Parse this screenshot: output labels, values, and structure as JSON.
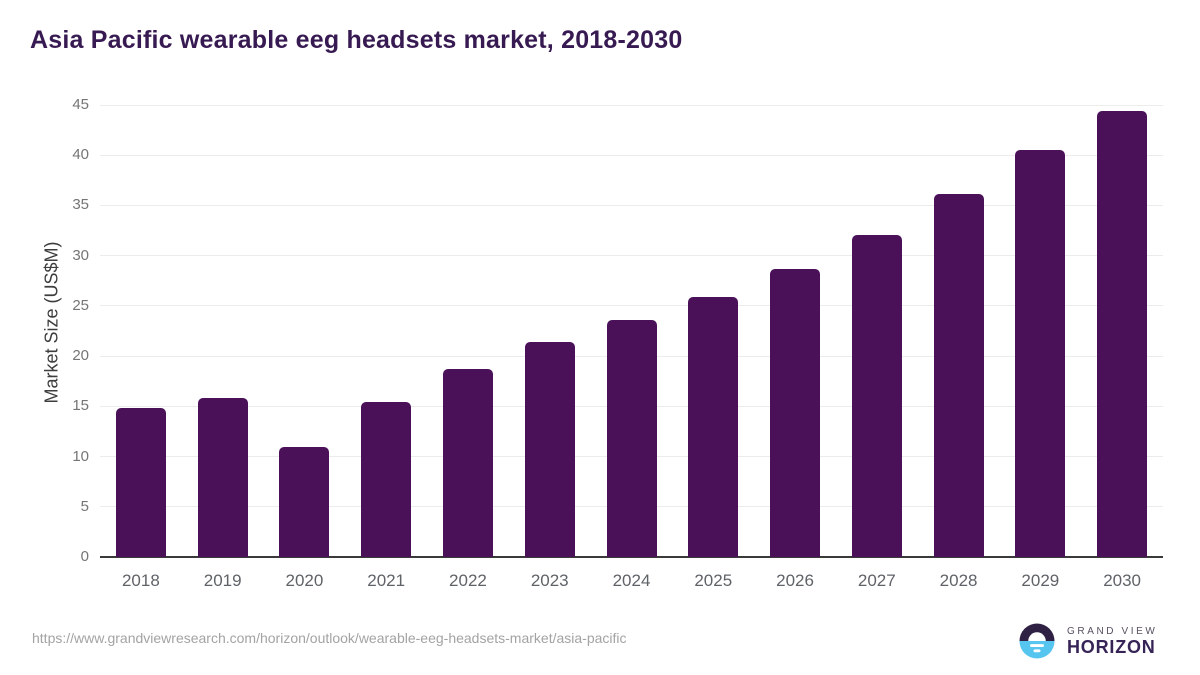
{
  "title": "Asia Pacific wearable eeg headsets market, 2018-2030",
  "chart_data": {
    "type": "bar",
    "title": "Asia Pacific wearable eeg headsets market, 2018-2030",
    "categories": [
      "2018",
      "2019",
      "2020",
      "2021",
      "2022",
      "2023",
      "2024",
      "2025",
      "2026",
      "2027",
      "2028",
      "2029",
      "2030"
    ],
    "values": [
      14.8,
      15.8,
      11.0,
      15.4,
      18.7,
      21.4,
      23.6,
      25.9,
      28.7,
      32.1,
      36.1,
      40.5,
      44.4
    ],
    "xlabel": "",
    "ylabel": "Market Size (US$M)",
    "ylim": [
      0,
      45
    ],
    "ytick_step": 5,
    "yticks": [
      0,
      5,
      10,
      15,
      20,
      25,
      30,
      35,
      40,
      45
    ],
    "grid": true,
    "legend": "none",
    "bar_color": "#4a1158"
  },
  "footer": {
    "source_url": "https://www.grandviewresearch.com/horizon/outlook/wearable-eeg-headsets-market/asia-pacific",
    "logo": {
      "line1": "GRAND VIEW",
      "line2": "HORIZON"
    }
  },
  "colors": {
    "bar": "#4a1158",
    "title_text": "#371a52",
    "axis_line": "#3a3a3a",
    "gridline": "#ececec",
    "tick_text": "#757575",
    "x_label_text": "#5f6368",
    "url_text": "#a3a3a3",
    "logo_dark": "#2e2144",
    "logo_blue": "#56c5f0"
  }
}
